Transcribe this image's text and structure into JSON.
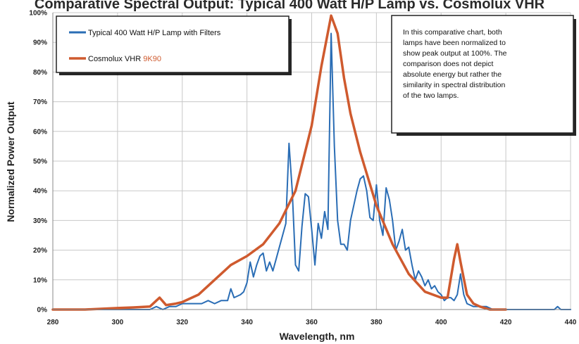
{
  "chart_data": {
    "type": "line",
    "title": "Comparative Spectral Output: Typical 400 Watt H/P Lamp vs. Cosmolux VHR",
    "xlabel": "Wavelength, nm",
    "ylabel": "Normalized Power Output",
    "xlim": [
      280,
      440
    ],
    "ylim": [
      0,
      100
    ],
    "x_ticks": [
      280,
      300,
      320,
      340,
      360,
      380,
      400,
      420,
      440
    ],
    "y_ticks": [
      0,
      10,
      20,
      30,
      40,
      50,
      60,
      70,
      80,
      90,
      100
    ],
    "y_tick_labels": [
      "0%",
      "10%",
      "20%",
      "30%",
      "40%",
      "50%",
      "60%",
      "70%",
      "80%",
      "90%",
      "100%"
    ],
    "grid": true,
    "legend_position": "top-left",
    "series": [
      {
        "name": "Typical 400 Watt H/P Lamp with Filters",
        "color": "#2a6db5",
        "x": [
          280,
          300,
          310,
          312,
          314,
          316,
          318,
          320,
          322,
          324,
          326,
          328,
          330,
          332,
          334,
          335,
          336,
          338,
          339,
          340,
          341,
          342,
          343,
          344,
          345,
          346,
          347,
          348,
          349,
          350,
          351,
          352,
          353,
          354,
          355,
          356,
          357,
          358,
          359,
          360,
          361,
          362,
          363,
          364,
          365,
          366,
          367,
          368,
          369,
          370,
          371,
          372,
          373,
          374,
          375,
          376,
          377,
          378,
          379,
          380,
          381,
          382,
          383,
          384,
          385,
          386,
          387,
          388,
          389,
          390,
          391,
          392,
          393,
          394,
          395,
          396,
          397,
          398,
          399,
          400,
          401,
          402,
          403,
          404,
          405,
          406,
          407,
          408,
          410,
          412,
          414,
          416,
          420,
          425,
          430,
          435,
          436,
          437,
          438,
          440
        ],
        "y": [
          0,
          0,
          0,
          1,
          0,
          1,
          1,
          2,
          2,
          2,
          2,
          3,
          2,
          3,
          3,
          7,
          4,
          5,
          6,
          9,
          16,
          11,
          15,
          18,
          19,
          13,
          16,
          13,
          17,
          21,
          25,
          29,
          56,
          40,
          15,
          13,
          28,
          39,
          38,
          27,
          15,
          29,
          24,
          33,
          27,
          93,
          55,
          30,
          22,
          22,
          20,
          30,
          35,
          40,
          44,
          45,
          40,
          31,
          30,
          42,
          30,
          25,
          41,
          37,
          30,
          20,
          23,
          27,
          20,
          21,
          15,
          10,
          13,
          11,
          8,
          10,
          7,
          8,
          6,
          5,
          3,
          4,
          4,
          3,
          5,
          12,
          5,
          2,
          1,
          1,
          1,
          0,
          0,
          0,
          0,
          0,
          1,
          0,
          0,
          0
        ]
      },
      {
        "name": "Cosmolux VHR 9K90",
        "color": "#cf5a2e",
        "x": [
          280,
          290,
          300,
          305,
          310,
          313,
          315,
          318,
          320,
          325,
          330,
          335,
          340,
          345,
          350,
          355,
          360,
          363,
          366,
          368,
          370,
          372,
          375,
          380,
          385,
          390,
          395,
          400,
          402,
          404,
          405,
          406,
          408,
          410,
          412,
          415,
          420
        ],
        "y": [
          0,
          0,
          0.5,
          0.7,
          1,
          4,
          1.5,
          2,
          2.5,
          5,
          10,
          15,
          18,
          22,
          29,
          40,
          62,
          82,
          99,
          93,
          78,
          66,
          53,
          35,
          22,
          12,
          6,
          4,
          4,
          17,
          22,
          16,
          5,
          2,
          1,
          0,
          0
        ]
      }
    ],
    "legend": {
      "entry1": "Typical 400 Watt H/P Lamp with Filters",
      "entry2_prefix": "Cosmolux VHR ",
      "entry2_suffix": "9K90"
    },
    "annotation": [
      "In this comparative chart, both",
      "lamps have been normalized to",
      "show peak output at 100%. The",
      "comparison does not depict",
      "absolute energy but rather the",
      "similarity in spectral distribution",
      "of the two lamps."
    ]
  },
  "colors": {
    "blue": "#2a6db5",
    "orange": "#cf5a2e",
    "grid": "#c8c8c8"
  }
}
